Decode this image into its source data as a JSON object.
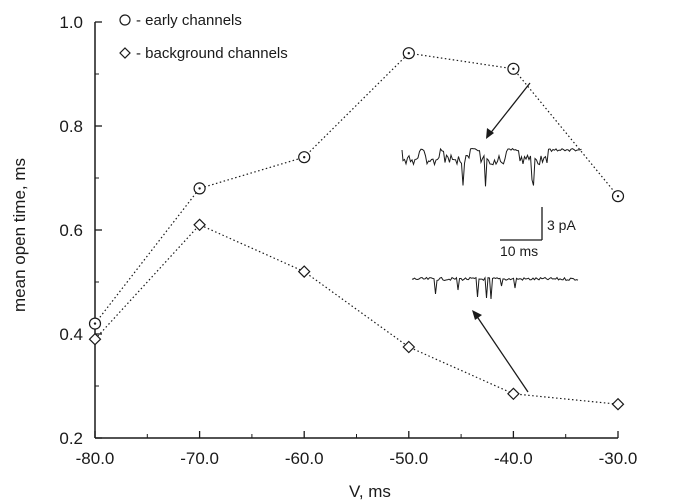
{
  "chart_data": {
    "type": "line",
    "title": "",
    "xlabel": "V, ms",
    "ylabel": "mean open time, ms",
    "x": [
      -80,
      -70,
      -60,
      -50,
      -40,
      -30
    ],
    "xlim": [
      -80,
      -30
    ],
    "ylim": [
      0.2,
      1.0
    ],
    "x_ticks": [
      -80,
      -70,
      -60,
      -50,
      -40,
      -30
    ],
    "x_tick_labels": [
      "-80.0",
      "-70.0",
      "-60.0",
      "-50.0",
      "-40.0",
      "-30.0"
    ],
    "y_ticks": [
      0.2,
      0.4,
      0.6,
      0.8,
      1.0
    ],
    "y_tick_labels": [
      "0.2",
      "0.4",
      "0.6",
      "0.8",
      "1.0"
    ],
    "grid": false,
    "legend_position": "top-left",
    "series": [
      {
        "name": "- early channels",
        "marker": "circle",
        "values": [
          0.42,
          0.68,
          0.74,
          0.94,
          0.91,
          0.665
        ]
      },
      {
        "name": "- background channels",
        "marker": "diamond",
        "values": [
          0.39,
          0.61,
          0.52,
          0.375,
          0.285,
          0.265
        ]
      }
    ],
    "annotations": {
      "scale_bar_current": "3 pA",
      "scale_bar_time": "10 ms",
      "insets": [
        "early channel current trace at -40 mV",
        "background channel current trace at -40 mV"
      ]
    },
    "colors": {
      "ink": "#1a1a1a",
      "background": "#ffffff"
    }
  }
}
